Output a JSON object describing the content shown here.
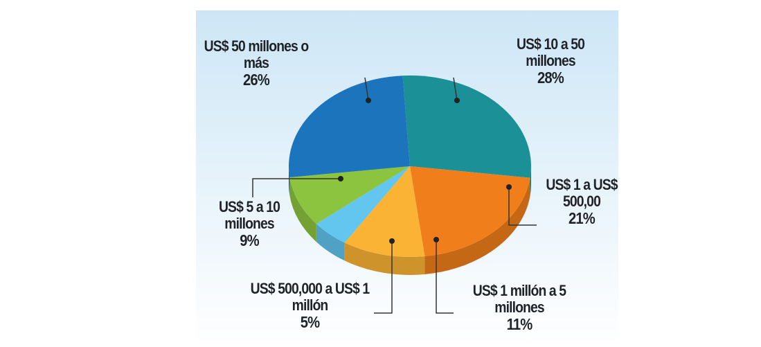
{
  "chart_data": {
    "type": "pie",
    "categories": [
      "US$ 10 a 50 millones",
      "US$ 1 a US$ 500,00",
      "US$ 1 millón a 5 millones",
      "US$ 500,000 a US$ 1 millón",
      "US$ 5 a 10 millones",
      "US$ 50 millones o más"
    ],
    "values": [
      28,
      21,
      11,
      5,
      9,
      26
    ],
    "value_labels": [
      "28%",
      "21%",
      "11%",
      "5%",
      "9%",
      "26%"
    ],
    "colors": [
      "#1b9097",
      "#f07f1b",
      "#fbb335",
      "#62c6ef",
      "#8cc43f",
      "#1c74bd"
    ]
  }
}
